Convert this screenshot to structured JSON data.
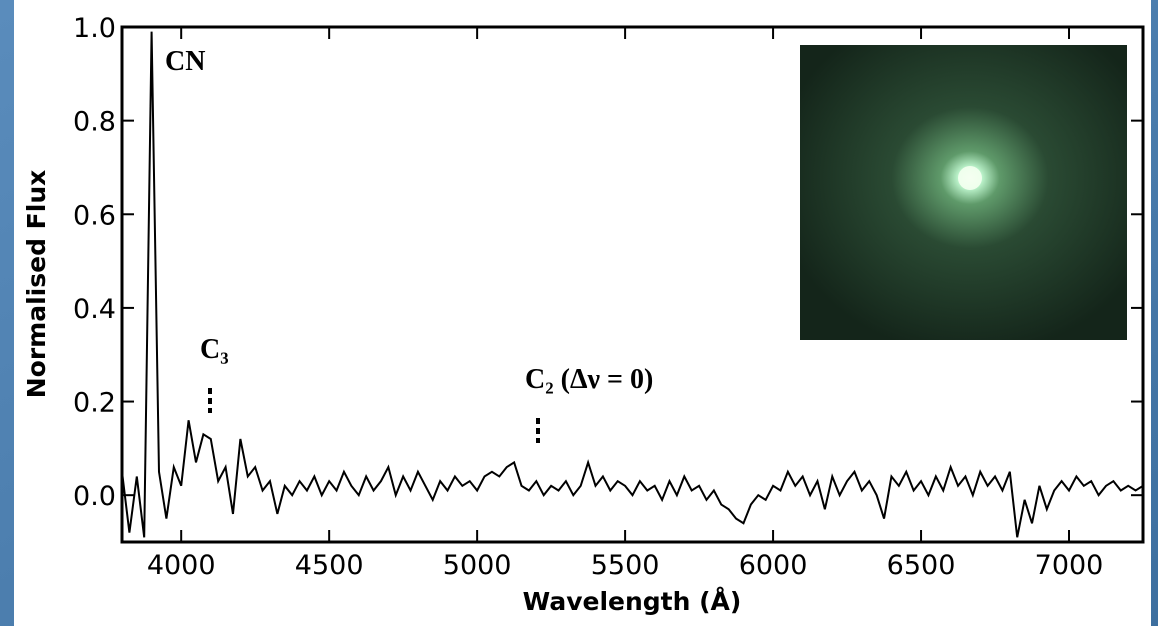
{
  "chart_data": {
    "type": "line",
    "xlabel": "Wavelength (Å)",
    "ylabel": "Normalised Flux",
    "annotations": [
      "CN",
      "C₃",
      "C₂ (Δν = 0)"
    ],
    "color": "#000000",
    "xlim": [
      3800,
      7250
    ],
    "ylim": [
      -0.1,
      1.0
    ],
    "xticks": [
      4000,
      4500,
      5000,
      5500,
      6000,
      6500,
      7000
    ],
    "yticks": [
      {
        "value": 0,
        "label": "0.0"
      },
      {
        "value": 0.2,
        "label": "0.2"
      },
      {
        "value": 0.4,
        "label": "0.4"
      },
      {
        "value": 0.6,
        "label": "0.6"
      },
      {
        "value": 0.8,
        "label": "0.8"
      },
      {
        "value": 1,
        "label": "1.0"
      }
    ],
    "x": [
      3800,
      3825,
      3850,
      3875,
      3900,
      3925,
      3950,
      3975,
      4000,
      4025,
      4050,
      4075,
      4100,
      4125,
      4150,
      4175,
      4200,
      4225,
      4250,
      4275,
      4300,
      4325,
      4350,
      4375,
      4400,
      4425,
      4450,
      4475,
      4500,
      4525,
      4550,
      4575,
      4600,
      4625,
      4650,
      4675,
      4700,
      4725,
      4750,
      4775,
      4800,
      4825,
      4850,
      4875,
      4900,
      4925,
      4950,
      4975,
      5000,
      5025,
      5050,
      5075,
      5100,
      5125,
      5150,
      5175,
      5200,
      5225,
      5250,
      5275,
      5300,
      5325,
      5350,
      5375,
      5400,
      5425,
      5450,
      5475,
      5500,
      5525,
      5550,
      5575,
      5600,
      5625,
      5650,
      5675,
      5700,
      5725,
      5750,
      5775,
      5800,
      5825,
      5850,
      5875,
      5900,
      5925,
      5950,
      5975,
      6000,
      6025,
      6050,
      6075,
      6100,
      6125,
      6150,
      6175,
      6200,
      6225,
      6250,
      6275,
      6300,
      6325,
      6350,
      6375,
      6400,
      6425,
      6450,
      6475,
      6500,
      6525,
      6550,
      6575,
      6600,
      6625,
      6650,
      6675,
      6700,
      6725,
      6750,
      6775,
      6800,
      6825,
      6850,
      6875,
      6900,
      6925,
      6950,
      6975,
      7000,
      7025,
      7050,
      7075,
      7100,
      7125,
      7150,
      7175,
      7200,
      7225,
      7250
    ],
    "values": [
      0.05,
      -0.08,
      0.04,
      -0.09,
      0.99,
      0.05,
      -0.05,
      0.06,
      0.02,
      0.16,
      0.07,
      0.13,
      0.12,
      0.03,
      0.06,
      -0.04,
      0.12,
      0.04,
      0.06,
      0.01,
      0.03,
      -0.04,
      0.02,
      0.0,
      0.03,
      0.01,
      0.04,
      0.0,
      0.03,
      0.01,
      0.05,
      0.02,
      0.0,
      0.04,
      0.01,
      0.03,
      0.06,
      0.0,
      0.04,
      0.01,
      0.05,
      0.02,
      -0.01,
      0.03,
      0.01,
      0.04,
      0.02,
      0.03,
      0.01,
      0.04,
      0.05,
      0.04,
      0.06,
      0.07,
      0.02,
      0.01,
      0.03,
      0.0,
      0.02,
      0.01,
      0.03,
      0.0,
      0.02,
      0.07,
      0.02,
      0.04,
      0.01,
      0.03,
      0.02,
      0.0,
      0.03,
      0.01,
      0.02,
      -0.01,
      0.03,
      0.0,
      0.04,
      0.01,
      0.02,
      -0.01,
      0.01,
      -0.02,
      -0.03,
      -0.05,
      -0.06,
      -0.02,
      0.0,
      -0.01,
      0.02,
      0.01,
      0.05,
      0.02,
      0.04,
      0.0,
      0.03,
      -0.03,
      0.04,
      0.0,
      0.03,
      0.05,
      0.01,
      0.03,
      0.0,
      -0.05,
      0.04,
      0.02,
      0.05,
      0.01,
      0.03,
      0.0,
      0.04,
      0.01,
      0.06,
      0.02,
      0.04,
      0.0,
      0.05,
      0.02,
      0.04,
      0.01,
      0.05,
      -0.09,
      -0.01,
      -0.06,
      0.02,
      -0.03,
      0.01,
      0.03,
      0.01,
      0.04,
      0.02,
      0.03,
      0.0,
      0.02,
      0.03,
      0.01,
      0.02,
      0.01,
      0.02
    ]
  }
}
